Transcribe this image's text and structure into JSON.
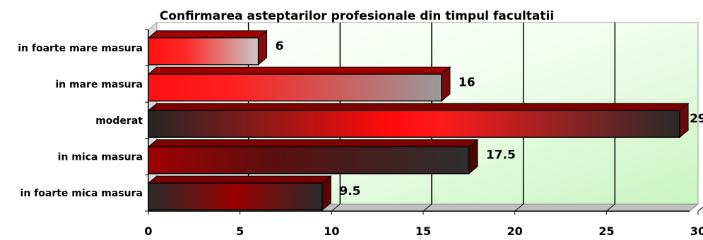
{
  "chart_data": {
    "type": "bar",
    "orientation": "horizontal",
    "title": "Confirmarea asteptarilor profesionale din timpul facultatii",
    "xlabel": "",
    "ylabel": "",
    "categories": [
      "in foarte mare masura",
      "in mare masura",
      "moderat",
      "in mica masura",
      "in foarte mica masura"
    ],
    "values": [
      6,
      16,
      29,
      17.5,
      9.5
    ],
    "data_labels": [
      "6",
      "16",
      "29",
      "17.5",
      "9.5"
    ],
    "xlim": [
      0,
      30
    ],
    "x_ticks": [
      0,
      5,
      10,
      15,
      20,
      25,
      30
    ],
    "x_tick_labels": [
      "0",
      "5",
      "10",
      "15",
      "20",
      "25",
      "30"
    ],
    "grid": true,
    "legend": "none",
    "style": "3d-gradient",
    "colors": {
      "plot_background_start": "#ffffff",
      "plot_background_end": "#c8f5c0",
      "bar_red": "#ff1a1a",
      "bar_dark": "#2a2a2a",
      "bar_dark_red": "#8a0000",
      "bar_grey": "#b8b8b8"
    }
  }
}
